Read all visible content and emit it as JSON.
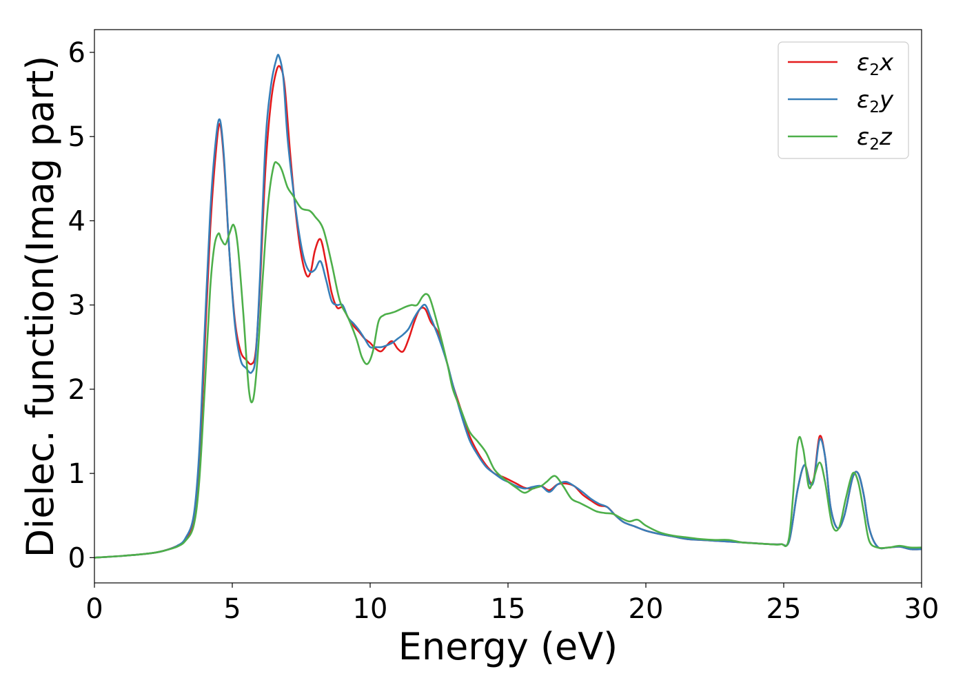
{
  "chart_data": {
    "type": "line",
    "xlabel": "Energy (eV)",
    "ylabel": "Dielec. function(Imag part)",
    "xlim": [
      0,
      30
    ],
    "ylim": [
      -0.3,
      6.27
    ],
    "xticks": [
      0,
      5,
      10,
      15,
      20,
      25,
      30
    ],
    "yticks": [
      0,
      1,
      2,
      3,
      4,
      5,
      6
    ],
    "grid": false,
    "legend_position": "top-right",
    "series": [
      {
        "name": "ε₂x",
        "legend": {
          "base": "ε",
          "sub": "2",
          "suffix": "x"
        },
        "color": "#e41a1c",
        "x": [
          0,
          1,
          2,
          2.5,
          3,
          3.3,
          3.6,
          3.8,
          4.0,
          4.2,
          4.4,
          4.55,
          4.7,
          4.9,
          5.1,
          5.3,
          5.5,
          5.7,
          5.85,
          6.0,
          6.2,
          6.4,
          6.6,
          6.75,
          6.9,
          7.1,
          7.3,
          7.5,
          7.7,
          7.85,
          8.0,
          8.2,
          8.4,
          8.6,
          8.8,
          9.0,
          9.2,
          9.4,
          9.6,
          9.8,
          10.0,
          10.2,
          10.4,
          10.6,
          10.8,
          11.0,
          11.2,
          11.4,
          11.6,
          11.8,
          12.0,
          12.2,
          12.5,
          12.8,
          13.0,
          13.3,
          13.6,
          13.9,
          14.2,
          14.5,
          14.8,
          15.0,
          15.3,
          15.6,
          15.9,
          16.2,
          16.5,
          16.8,
          17.1,
          17.4,
          17.7,
          18.0,
          18.3,
          18.6,
          18.9,
          19.2,
          19.6,
          20.0,
          20.5,
          21.0,
          21.5,
          22.0,
          22.5,
          23.0,
          23.5,
          24.0,
          24.5,
          24.9,
          25.2,
          25.5,
          25.75,
          25.95,
          26.1,
          26.3,
          26.5,
          26.7,
          26.95,
          27.2,
          27.5,
          27.7,
          27.9,
          28.1,
          28.4,
          28.8,
          29.2,
          29.6,
          30.0
        ],
        "y": [
          0,
          0.02,
          0.05,
          0.08,
          0.14,
          0.22,
          0.45,
          1.1,
          2.5,
          3.9,
          4.8,
          5.15,
          4.7,
          3.6,
          2.8,
          2.45,
          2.35,
          2.3,
          2.45,
          3.2,
          4.6,
          5.4,
          5.78,
          5.82,
          5.6,
          4.8,
          4.1,
          3.6,
          3.35,
          3.4,
          3.65,
          3.78,
          3.5,
          3.15,
          2.97,
          2.97,
          2.85,
          2.75,
          2.68,
          2.6,
          2.55,
          2.48,
          2.45,
          2.52,
          2.57,
          2.48,
          2.45,
          2.6,
          2.8,
          2.95,
          2.95,
          2.8,
          2.65,
          2.3,
          2.05,
          1.75,
          1.45,
          1.25,
          1.1,
          1.0,
          0.96,
          0.93,
          0.88,
          0.83,
          0.82,
          0.85,
          0.8,
          0.87,
          0.88,
          0.85,
          0.75,
          0.68,
          0.62,
          0.6,
          0.5,
          0.42,
          0.37,
          0.32,
          0.28,
          0.25,
          0.22,
          0.21,
          0.2,
          0.19,
          0.18,
          0.17,
          0.16,
          0.16,
          0.2,
          0.8,
          1.1,
          0.9,
          0.95,
          1.44,
          1.2,
          0.6,
          0.35,
          0.5,
          0.95,
          1.0,
          0.75,
          0.35,
          0.13,
          0.12,
          0.13,
          0.1,
          0.1
        ]
      },
      {
        "name": "ε₂y",
        "legend": {
          "base": "ε",
          "sub": "2",
          "suffix": "y"
        },
        "color": "#377eb8",
        "x": [
          0,
          1,
          2,
          2.5,
          3,
          3.3,
          3.6,
          3.8,
          4.0,
          4.2,
          4.4,
          4.55,
          4.7,
          4.9,
          5.1,
          5.3,
          5.5,
          5.7,
          5.85,
          6.0,
          6.2,
          6.4,
          6.6,
          6.7,
          6.85,
          7.0,
          7.2,
          7.4,
          7.6,
          7.8,
          8.0,
          8.2,
          8.4,
          8.6,
          8.8,
          9.0,
          9.2,
          9.4,
          9.6,
          9.8,
          10.0,
          10.2,
          10.4,
          10.6,
          10.8,
          11.0,
          11.2,
          11.4,
          11.6,
          11.8,
          12.0,
          12.2,
          12.5,
          12.8,
          13.0,
          13.3,
          13.6,
          13.9,
          14.2,
          14.5,
          14.8,
          15.0,
          15.3,
          15.6,
          15.9,
          16.2,
          16.5,
          16.8,
          17.1,
          17.4,
          17.7,
          18.0,
          18.3,
          18.6,
          18.9,
          19.2,
          19.6,
          20.0,
          20.5,
          21.0,
          21.5,
          22.0,
          22.5,
          23.0,
          23.5,
          24.0,
          24.5,
          24.9,
          25.2,
          25.5,
          25.75,
          25.95,
          26.1,
          26.3,
          26.5,
          26.7,
          26.95,
          27.2,
          27.5,
          27.7,
          27.9,
          28.1,
          28.4,
          28.8,
          29.2,
          29.6,
          30.0
        ],
        "y": [
          0,
          0.02,
          0.05,
          0.08,
          0.14,
          0.23,
          0.5,
          1.25,
          2.7,
          4.1,
          4.95,
          5.2,
          4.75,
          3.6,
          2.75,
          2.35,
          2.25,
          2.2,
          2.4,
          3.3,
          4.9,
          5.6,
          5.92,
          5.95,
          5.7,
          5.0,
          4.4,
          3.9,
          3.55,
          3.4,
          3.42,
          3.52,
          3.3,
          3.05,
          3.0,
          3.0,
          2.85,
          2.78,
          2.7,
          2.6,
          2.5,
          2.5,
          2.5,
          2.52,
          2.55,
          2.6,
          2.65,
          2.72,
          2.85,
          2.95,
          3.0,
          2.85,
          2.6,
          2.3,
          2.05,
          1.7,
          1.4,
          1.22,
          1.08,
          1.0,
          0.93,
          0.9,
          0.85,
          0.82,
          0.84,
          0.85,
          0.78,
          0.87,
          0.9,
          0.85,
          0.78,
          0.7,
          0.64,
          0.6,
          0.5,
          0.42,
          0.37,
          0.32,
          0.28,
          0.25,
          0.22,
          0.21,
          0.2,
          0.19,
          0.18,
          0.17,
          0.16,
          0.16,
          0.2,
          0.8,
          1.1,
          0.88,
          0.93,
          1.4,
          1.2,
          0.6,
          0.35,
          0.5,
          0.95,
          1.0,
          0.75,
          0.35,
          0.13,
          0.12,
          0.13,
          0.1,
          0.1
        ]
      },
      {
        "name": "ε₂z",
        "legend": {
          "base": "ε",
          "sub": "2",
          "suffix": "z"
        },
        "color": "#4daf4a",
        "x": [
          0,
          1,
          2,
          2.5,
          3,
          3.3,
          3.6,
          3.8,
          4.0,
          4.2,
          4.35,
          4.5,
          4.6,
          4.75,
          4.9,
          5.05,
          5.2,
          5.4,
          5.6,
          5.75,
          5.9,
          6.1,
          6.3,
          6.5,
          6.65,
          6.8,
          7.0,
          7.2,
          7.5,
          7.8,
          8.0,
          8.3,
          8.6,
          8.9,
          9.2,
          9.5,
          9.7,
          9.9,
          10.1,
          10.3,
          10.5,
          10.7,
          10.9,
          11.1,
          11.3,
          11.5,
          11.7,
          11.9,
          12.05,
          12.2,
          12.5,
          12.8,
          13.0,
          13.3,
          13.6,
          13.9,
          14.2,
          14.5,
          14.8,
          15.0,
          15.3,
          15.6,
          15.9,
          16.2,
          16.4,
          16.7,
          17.0,
          17.3,
          17.6,
          17.9,
          18.2,
          18.5,
          18.8,
          19.1,
          19.4,
          19.7,
          20.0,
          20.5,
          21.0,
          21.5,
          22.0,
          22.5,
          23.0,
          23.5,
          24.0,
          24.5,
          24.9,
          25.2,
          25.5,
          25.7,
          25.9,
          26.05,
          26.3,
          26.5,
          26.75,
          27.0,
          27.25,
          27.5,
          27.7,
          27.9,
          28.1,
          28.4,
          28.8,
          29.2,
          29.6,
          30.0
        ],
        "y": [
          0,
          0.02,
          0.05,
          0.08,
          0.13,
          0.2,
          0.38,
          0.9,
          2.0,
          3.2,
          3.7,
          3.85,
          3.78,
          3.72,
          3.85,
          3.95,
          3.7,
          2.9,
          2.0,
          1.87,
          2.3,
          3.3,
          4.2,
          4.65,
          4.68,
          4.6,
          4.4,
          4.3,
          4.15,
          4.12,
          4.05,
          3.9,
          3.5,
          3.05,
          2.85,
          2.6,
          2.38,
          2.3,
          2.45,
          2.8,
          2.88,
          2.9,
          2.92,
          2.95,
          2.98,
          3.0,
          3.0,
          3.1,
          3.13,
          3.05,
          2.7,
          2.3,
          2.0,
          1.75,
          1.5,
          1.38,
          1.25,
          1.05,
          0.95,
          0.9,
          0.83,
          0.77,
          0.82,
          0.85,
          0.9,
          0.97,
          0.85,
          0.7,
          0.65,
          0.6,
          0.55,
          0.53,
          0.52,
          0.47,
          0.43,
          0.45,
          0.38,
          0.3,
          0.26,
          0.24,
          0.22,
          0.21,
          0.21,
          0.18,
          0.17,
          0.16,
          0.16,
          0.25,
          1.35,
          1.3,
          0.85,
          0.9,
          1.13,
          0.9,
          0.4,
          0.35,
          0.7,
          1.0,
          0.9,
          0.55,
          0.2,
          0.12,
          0.12,
          0.14,
          0.12,
          0.12
        ]
      }
    ]
  }
}
